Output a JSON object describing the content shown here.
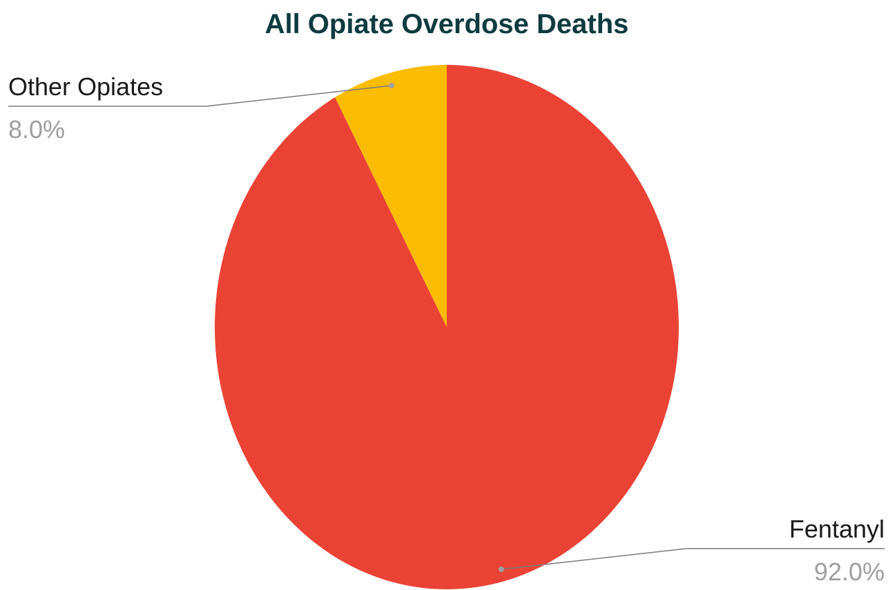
{
  "chart_data": {
    "type": "pie",
    "title": "All Opiate Overdose Deaths",
    "slices": [
      {
        "label": "Fentanyl",
        "value": 92.0,
        "display": "92.0%",
        "color": "#ea4335"
      },
      {
        "label": "Other Opiates",
        "value": 8.0,
        "display": "8.0%",
        "color": "#fbbc04"
      }
    ],
    "start_angle": "12 o'clock",
    "direction": "clockwise",
    "label_style": "outside with leader lines"
  },
  "colors": {
    "title": "#0d3b3e",
    "label": "#1a1a1a",
    "value": "#9e9e9e",
    "leader": "#7a7a7a"
  }
}
